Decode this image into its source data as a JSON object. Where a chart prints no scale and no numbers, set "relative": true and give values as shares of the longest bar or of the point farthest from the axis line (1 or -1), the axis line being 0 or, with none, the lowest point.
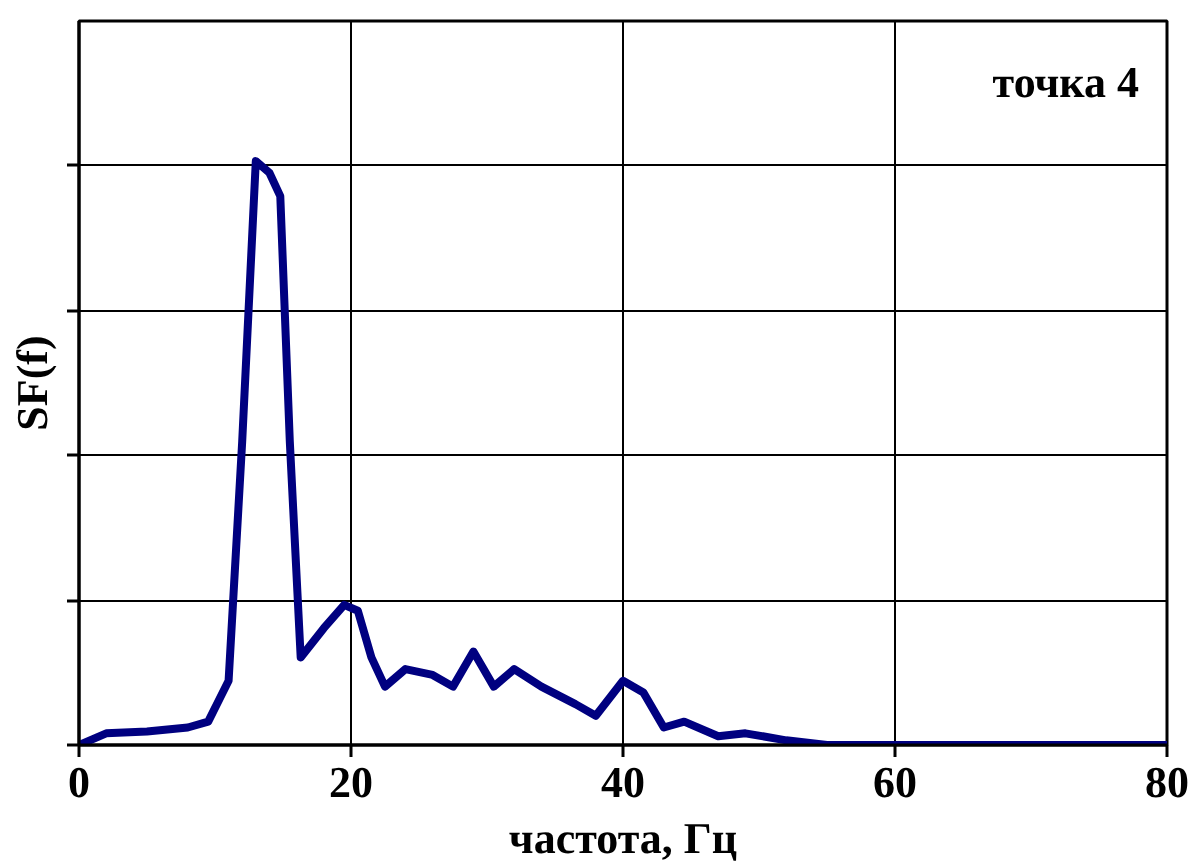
{
  "chart_data": {
    "type": "line",
    "relative": true,
    "xlabel": "частота, Гц",
    "ylabel": "SF(f)",
    "annotations": [
      "точка 4"
    ],
    "x": [
      0,
      2,
      5,
      8,
      9.5,
      11,
      12,
      13,
      14,
      14.8,
      15.5,
      16.3,
      18,
      19.5,
      20.5,
      21.5,
      22.5,
      24,
      26,
      27.5,
      29,
      30.5,
      32,
      34,
      36.5,
      38,
      40,
      41.5,
      43,
      44.5,
      47,
      49,
      52,
      55,
      60,
      70,
      80
    ],
    "series": [
      {
        "color": "#000080",
        "values": [
          0,
          0.02,
          0.023,
          0.03,
          0.04,
          0.11,
          0.52,
          1.0,
          0.98,
          0.94,
          0.52,
          0.15,
          0.2,
          0.24,
          0.23,
          0.15,
          0.1,
          0.13,
          0.12,
          0.1,
          0.16,
          0.1,
          0.13,
          0.1,
          0.07,
          0.05,
          0.11,
          0.09,
          0.03,
          0.04,
          0.015,
          0.02,
          0.008,
          0,
          0,
          0,
          0
        ]
      }
    ],
    "xlim": [
      0,
      80
    ],
    "xticks": [
      0,
      20,
      40,
      60,
      80
    ],
    "grid": true,
    "marker": "none",
    "line_style": "solid"
  }
}
